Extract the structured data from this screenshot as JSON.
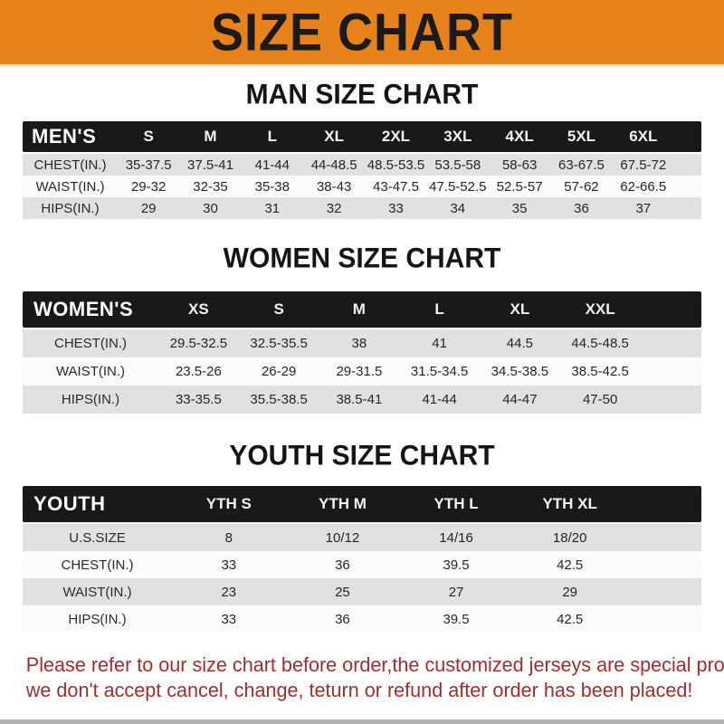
{
  "banner": {
    "title": "SIZE CHART",
    "bg_color": "#E8821B",
    "text_color": "#1B1B1B"
  },
  "colors": {
    "header_bar": "#191919",
    "row_shade": "#E1E1E1",
    "row_plain": "#FCFCFC",
    "footer_text": "#A32D2A"
  },
  "sections": [
    {
      "id": "men",
      "title": "MAN SIZE CHART",
      "header_label": "MEN'S",
      "columns": [
        "S",
        "M",
        "L",
        "XL",
        "2XL",
        "3XL",
        "4XL",
        "5XL",
        "6XL"
      ],
      "rows": [
        {
          "label": "CHEST(IN.)",
          "values": [
            "35-37.5",
            "37.5-41",
            "41-44",
            "44-48.5",
            "48.5-53.5",
            "53.5-58",
            "58-63",
            "63-67.5",
            "67.5-72"
          ]
        },
        {
          "label": "WAIST(IN.)",
          "values": [
            "29-32",
            "32-35",
            "35-38",
            "38-43",
            "43-47.5",
            "47.5-52.5",
            "52.5-57",
            "57-62",
            "62-66.5"
          ]
        },
        {
          "label": "HIPS(IN.)",
          "values": [
            "29",
            "30",
            "31",
            "32",
            "33",
            "34",
            "35",
            "36",
            "37"
          ]
        }
      ]
    },
    {
      "id": "women",
      "title": "WOMEN SIZE CHART",
      "header_label": "WOMEN'S",
      "columns": [
        "XS",
        "S",
        "M",
        "L",
        "XL",
        "XXL"
      ],
      "rows": [
        {
          "label": "CHEST(IN.)",
          "values": [
            "29.5-32.5",
            "32.5-35.5",
            "38",
            "41",
            "44.5",
            "44.5-48.5"
          ]
        },
        {
          "label": "WAIST(IN.)",
          "values": [
            "23.5-26",
            "26-29",
            "29-31.5",
            "31.5-34.5",
            "34.5-38.5",
            "38.5-42.5"
          ]
        },
        {
          "label": "HIPS(IN.)",
          "values": [
            "33-35.5",
            "35.5-38.5",
            "38.5-41",
            "41-44",
            "44-47",
            "47-50"
          ]
        }
      ]
    },
    {
      "id": "youth",
      "title": "YOUTH SIZE CHART",
      "header_label": "YOUTH",
      "columns": [
        "YTH S",
        "YTH M",
        "YTH L",
        "YTH XL"
      ],
      "rows": [
        {
          "label": "U.S.SIZE",
          "values": [
            "8",
            "10/12",
            "14/16",
            "18/20"
          ]
        },
        {
          "label": "CHEST(IN.)",
          "values": [
            "33",
            "36",
            "39.5",
            "42.5"
          ]
        },
        {
          "label": "WAIST(IN.)",
          "values": [
            "23",
            "25",
            "27",
            "29"
          ]
        },
        {
          "label": "HIPS(IN.)",
          "values": [
            "33",
            "36",
            "39.5",
            "42.5"
          ]
        }
      ]
    }
  ],
  "footer": {
    "line1": "Please refer to our size chart before order,the customized jerseys are special products,",
    "line2": "we don't accept cancel, change, teturn or refund after order has been placed!"
  }
}
